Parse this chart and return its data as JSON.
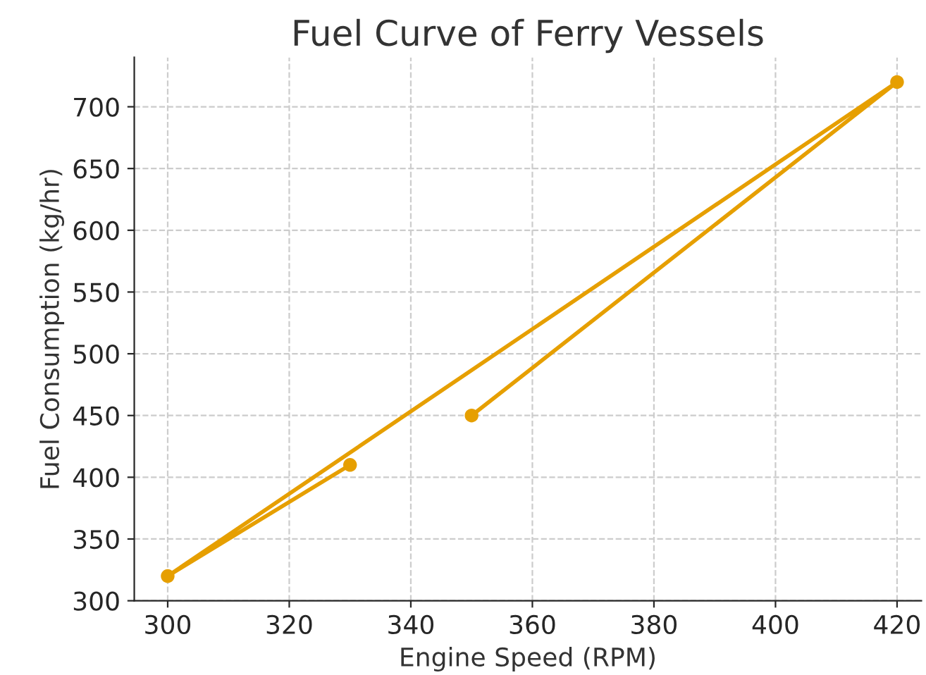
{
  "chart_data": {
    "type": "line",
    "title": "Fuel Curve of Ferry Vessels",
    "xlabel": "Engine Speed (RPM)",
    "ylabel": "Fuel Consumption (kg/hr)",
    "series": [
      {
        "color": "#e69f00",
        "x": [
          330,
          300,
          420,
          350
        ],
        "values": [
          410,
          320,
          720,
          450
        ]
      }
    ],
    "xlim": [
      294.5,
      424
    ],
    "xticks": [
      300,
      320,
      340,
      360,
      380,
      400,
      420
    ],
    "ylim": [
      300,
      740
    ],
    "yticks": [
      300,
      350,
      400,
      450,
      500,
      550,
      600,
      650,
      700
    ],
    "grid": true,
    "marker": "circle",
    "line_style": "solid"
  }
}
